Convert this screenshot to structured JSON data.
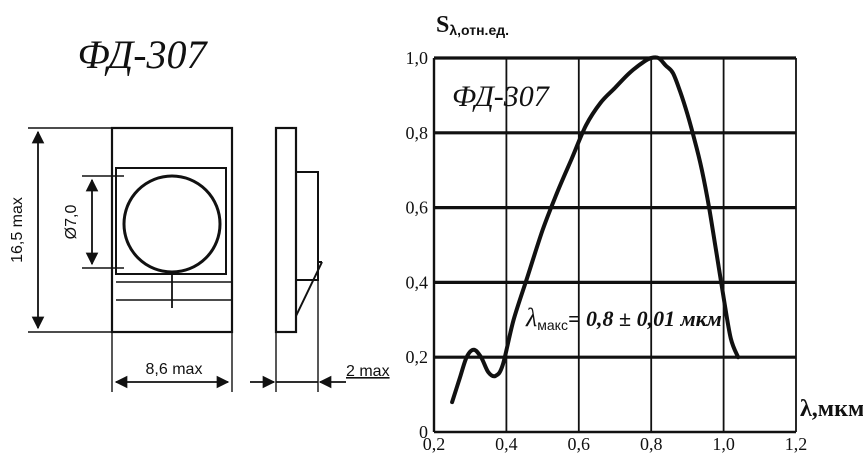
{
  "drawing": {
    "title": "ФД-307",
    "dim_height": "16,5 max",
    "dim_diameter": "Ø7,0",
    "dim_width": "8,6 max",
    "dim_thickness": "2 max"
  },
  "chart_data": {
    "type": "line",
    "ylabel_main": "S",
    "ylabel_sub": "λ,отн.ед.",
    "xlabel": "λ,мкм",
    "inner_label": "ФД-307",
    "annotation_symbol": "λ",
    "annotation_sub": "макс",
    "annotation_value": "= 0,8 ± 0,01 мкм",
    "xlim": [
      0.2,
      1.2
    ],
    "ylim": [
      0,
      1.0
    ],
    "x_ticks": [
      0.2,
      0.4,
      0.6,
      0.8,
      1.0,
      1.2
    ],
    "x_tick_labels": [
      "0,2",
      "0,4",
      "0,6",
      "0,8",
      "1,0",
      "1,2"
    ],
    "y_ticks": [
      0,
      0.2,
      0.4,
      0.6,
      0.8,
      1.0
    ],
    "y_tick_labels": [
      "0",
      "0,2",
      "0,4",
      "0,6",
      "0,8",
      "1,0"
    ],
    "grid": true,
    "series": [
      {
        "x": [
          0.25,
          0.27,
          0.29,
          0.31,
          0.33,
          0.35,
          0.37,
          0.39,
          0.42,
          0.46,
          0.5,
          0.54,
          0.58,
          0.62,
          0.66,
          0.7,
          0.74,
          0.78,
          0.8,
          0.82,
          0.84,
          0.86,
          0.88,
          0.9,
          0.92,
          0.94,
          0.96,
          0.98,
          1.0,
          1.02,
          1.04
        ],
        "y": [
          0.08,
          0.14,
          0.2,
          0.22,
          0.2,
          0.16,
          0.15,
          0.18,
          0.3,
          0.42,
          0.54,
          0.64,
          0.73,
          0.82,
          0.88,
          0.92,
          0.96,
          0.99,
          1.0,
          1.0,
          0.98,
          0.96,
          0.91,
          0.85,
          0.78,
          0.7,
          0.6,
          0.48,
          0.36,
          0.25,
          0.2
        ]
      }
    ]
  }
}
